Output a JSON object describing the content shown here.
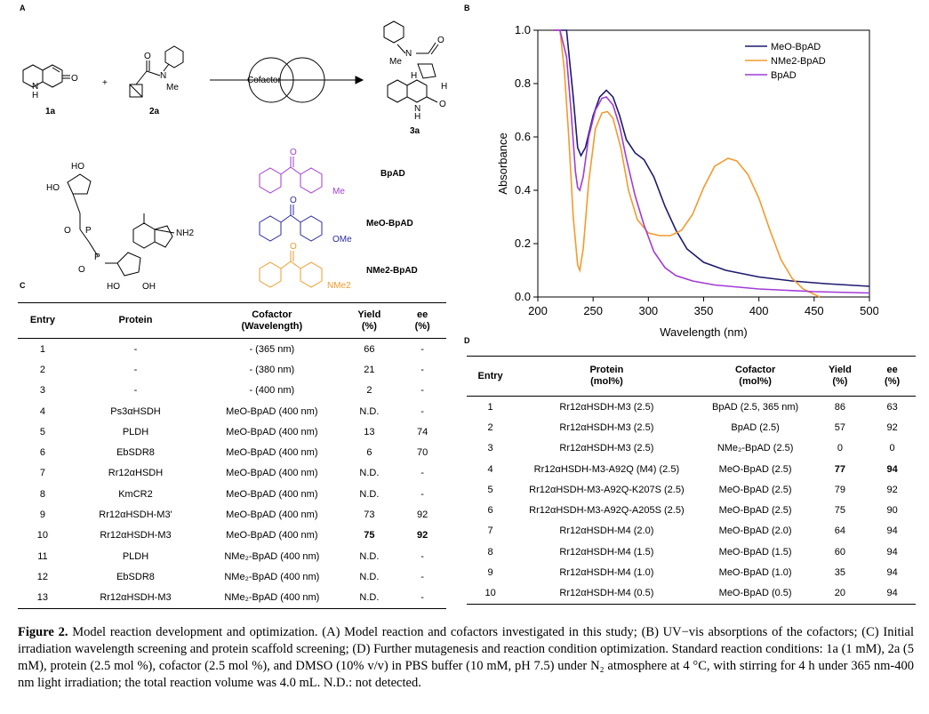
{
  "panels": {
    "a": "A",
    "b": "B",
    "c": "C",
    "d": "D"
  },
  "scheme": {
    "compound_1a": "1a",
    "compound_2a": "2a",
    "compound_3a": "3a",
    "plus": "+",
    "cofactor_label": "Cofactor",
    "atom_N": "N",
    "atom_H": "H",
    "atom_O": "O",
    "atom_Me": "Me",
    "atom_OH": "HO",
    "atom_OH2": "OH",
    "atom_NH2": "NH2",
    "atom_P": "P",
    "sub_OMe": "OMe",
    "sub_NMe2": "NMe2",
    "cof_BpAD": "BpAD",
    "cof_MeO": "MeO-BpAD",
    "cof_NMe2": "NMe2-BpAD"
  },
  "chart_data": {
    "type": "line",
    "xlabel": "Wavelength (nm)",
    "ylabel": "Absorbance",
    "xlim": [
      200,
      500
    ],
    "ylim": [
      0,
      1.0
    ],
    "xticks": [
      "200",
      "250",
      "300",
      "350",
      "400",
      "450",
      "500"
    ],
    "yticks": [
      "0.0",
      "0.2",
      "0.4",
      "0.6",
      "0.8",
      "1.0"
    ],
    "legend_position": "top-right",
    "series": [
      {
        "name": "MeO-BpAD",
        "color": "#1d1a6e",
        "x": [
          214,
          220,
          226,
          232,
          236,
          239,
          243,
          250,
          256,
          262,
          268,
          274,
          280,
          288,
          296,
          305,
          315,
          325,
          335,
          350,
          370,
          400,
          430,
          460,
          500
        ],
        "y": [
          1.0,
          1.0,
          1.0,
          0.75,
          0.56,
          0.53,
          0.56,
          0.68,
          0.75,
          0.775,
          0.75,
          0.68,
          0.59,
          0.54,
          0.515,
          0.45,
          0.34,
          0.25,
          0.18,
          0.13,
          0.1,
          0.075,
          0.06,
          0.05,
          0.04
        ]
      },
      {
        "name": "NMe2-BpAD",
        "color": "#f39a2e",
        "x": [
          214,
          220,
          224,
          228,
          232,
          236,
          238,
          241,
          246,
          252,
          258,
          263,
          268,
          275,
          282,
          290,
          300,
          310,
          320,
          330,
          340,
          350,
          360,
          372,
          380,
          390,
          400,
          410,
          420,
          430,
          440,
          450,
          455
        ],
        "y": [
          1.0,
          1.0,
          0.85,
          0.6,
          0.3,
          0.12,
          0.1,
          0.18,
          0.43,
          0.63,
          0.69,
          0.695,
          0.67,
          0.56,
          0.4,
          0.29,
          0.24,
          0.23,
          0.23,
          0.25,
          0.31,
          0.41,
          0.49,
          0.52,
          0.51,
          0.46,
          0.37,
          0.25,
          0.14,
          0.07,
          0.03,
          0.01,
          0.0
        ]
      },
      {
        "name": "BpAD",
        "color": "#a23bd6",
        "x": [
          214,
          220,
          226,
          230,
          234,
          236,
          238,
          241,
          246,
          252,
          258,
          262,
          268,
          274,
          280,
          288,
          296,
          305,
          315,
          325,
          340,
          360,
          400,
          450,
          500
        ],
        "y": [
          1.0,
          1.0,
          0.9,
          0.7,
          0.47,
          0.41,
          0.4,
          0.45,
          0.6,
          0.7,
          0.745,
          0.75,
          0.72,
          0.64,
          0.52,
          0.38,
          0.27,
          0.17,
          0.11,
          0.08,
          0.06,
          0.045,
          0.03,
          0.02,
          0.015
        ]
      }
    ]
  },
  "tableC": {
    "headers": {
      "entry": "Entry",
      "protein": "Protein",
      "cofactor1": "Cofactor",
      "cofactor2": "(Wavelength)",
      "yield1": "Yield",
      "yield2": "(%)",
      "ee1": "ee",
      "ee2": "(%)"
    },
    "rows": [
      {
        "entry": "1",
        "protein": "-",
        "cofactor": "- (365 nm)",
        "yield": "66",
        "ee": "-"
      },
      {
        "entry": "2",
        "protein": "-",
        "cofactor": "- (380 nm)",
        "yield": "21",
        "ee": "-"
      },
      {
        "entry": "3",
        "protein": "-",
        "cofactor": "- (400 nm)",
        "yield": "2",
        "ee": "-"
      },
      {
        "entry": "4",
        "protein": "Ps3αHSDH",
        "cofactor": "MeO-BpAD (400 nm)",
        "yield": "N.D.",
        "ee": "-"
      },
      {
        "entry": "5",
        "protein": "PLDH",
        "cofactor": "MeO-BpAD (400 nm)",
        "yield": "13",
        "ee": "74"
      },
      {
        "entry": "6",
        "protein": "EbSDR8",
        "cofactor": "MeO-BpAD (400 nm)",
        "yield": "6",
        "ee": "70"
      },
      {
        "entry": "7",
        "protein": "Rr12αHSDH",
        "cofactor": "MeO-BpAD (400 nm)",
        "yield": "N.D.",
        "ee": "-"
      },
      {
        "entry": "8",
        "protein": "KmCR2",
        "cofactor": "MeO-BpAD (400 nm)",
        "yield": "N.D.",
        "ee": "-"
      },
      {
        "entry": "9",
        "protein": "Rr12αHSDH-M3'",
        "cofactor": "MeO-BpAD (400 nm)",
        "yield": "73",
        "ee": "92"
      },
      {
        "entry": "10",
        "protein": "Rr12αHSDH-M3",
        "cofactor": "MeO-BpAD (400 nm)",
        "yield": "75",
        "ee": "92"
      },
      {
        "entry": "11",
        "protein": "PLDH",
        "cofactor": "NMe₂-BpAD (400 nm)",
        "yield": "N.D.",
        "ee": "-"
      },
      {
        "entry": "12",
        "protein": "EbSDR8",
        "cofactor": "NMe₂-BpAD (400 nm)",
        "yield": "N.D.",
        "ee": "-"
      },
      {
        "entry": "13",
        "protein": "Rr12αHSDH-M3",
        "cofactor": "NMe₂-BpAD (400 nm)",
        "yield": "N.D.",
        "ee": "-"
      }
    ]
  },
  "tableD": {
    "headers": {
      "entry": "Entry",
      "protein1": "Protein",
      "protein2": "(mol%)",
      "cofactor1": "Cofactor",
      "cofactor2": "(mol%)",
      "yield1": "Yield",
      "yield2": "(%)",
      "ee1": "ee",
      "ee2": "(%)"
    },
    "rows": [
      {
        "entry": "1",
        "protein": "Rr12αHSDH-M3 (2.5)",
        "cofactor": "BpAD (2.5, 365 nm)",
        "yield": "86",
        "ee": "63"
      },
      {
        "entry": "2",
        "protein": "Rr12αHSDH-M3 (2.5)",
        "cofactor": "BpAD (2.5)",
        "yield": "57",
        "ee": "92"
      },
      {
        "entry": "3",
        "protein": "Rr12αHSDH-M3 (2.5)",
        "cofactor": "NMe₂-BpAD (2.5)",
        "yield": "0",
        "ee": "0"
      },
      {
        "entry": "4",
        "protein": "Rr12αHSDH-M3-A92Q (M4) (2.5)",
        "cofactor": "MeO-BpAD (2.5)",
        "yield": "77",
        "ee": "94"
      },
      {
        "entry": "5",
        "protein": "Rr12αHSDH-M3-A92Q-K207S (2.5)",
        "cofactor": "MeO-BpAD (2.5)",
        "yield": "79",
        "ee": "92"
      },
      {
        "entry": "6",
        "protein": "Rr12αHSDH-M3-A92Q-A205S (2.5)",
        "cofactor": "MeO-BpAD (2.5)",
        "yield": "75",
        "ee": "90"
      },
      {
        "entry": "7",
        "protein": "Rr12αHSDH-M4 (2.0)",
        "cofactor": "MeO-BpAD (2.0)",
        "yield": "64",
        "ee": "94"
      },
      {
        "entry": "8",
        "protein": "Rr12αHSDH-M4 (1.5)",
        "cofactor": "MeO-BpAD (1.5)",
        "yield": "60",
        "ee": "94"
      },
      {
        "entry": "9",
        "protein": "Rr12αHSDH-M4 (1.0)",
        "cofactor": "MeO-BpAD (1.0)",
        "yield": "35",
        "ee": "94"
      },
      {
        "entry": "10",
        "protein": "Rr12αHSDH-M4 (0.5)",
        "cofactor": "MeO-BpAD (0.5)",
        "yield": "20",
        "ee": "94"
      }
    ]
  },
  "caption": {
    "label": "Figure 2.",
    "text": " Model reaction development and optimization. (A) Model reaction and cofactors investigated in this study; (B) UV−vis absorptions of the cofactors; (C) Initial irradiation wavelength screening and protein scaffold screening; (D) Further mutagenesis and reaction condition optimization. Standard reaction conditions: 1a (1 mM), 2a (5 mM), protein (2.5 mol %), cofactor (2.5 mol %), and DMSO (10% v/v) in PBS buffer (10 mM, pH 7.5) under N₂ atmosphere at 4 °C, with stirring for 4 h under 365 nm-400 nm light irradiation; the total reaction volume was 4.0 mL. N.D.: not detected."
  }
}
